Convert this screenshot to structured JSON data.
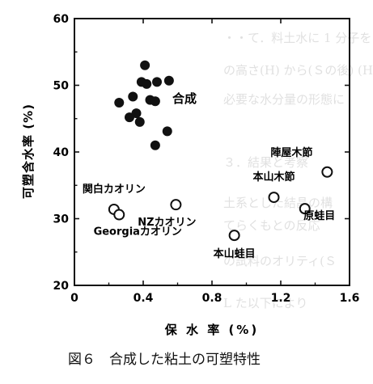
{
  "chart_data": {
    "type": "scatter",
    "xlabel": "保 水 率 (%)",
    "ylabel": "可塑含水率 (%)",
    "xlim": [
      0,
      1.6
    ],
    "ylim": [
      20,
      60
    ],
    "x_ticks": [
      "0",
      "0.4",
      "0.8",
      "1.2",
      "1.6"
    ],
    "y_ticks": [
      "20",
      "30",
      "40",
      "50",
      "60"
    ],
    "grid": false,
    "series": [
      {
        "name": "合成",
        "marker": "filled-circle",
        "points": [
          {
            "x": 0.41,
            "y": 53.0
          },
          {
            "x": 0.39,
            "y": 50.5
          },
          {
            "x": 0.42,
            "y": 50.2
          },
          {
            "x": 0.48,
            "y": 50.5
          },
          {
            "x": 0.55,
            "y": 50.7
          },
          {
            "x": 0.34,
            "y": 48.3
          },
          {
            "x": 0.44,
            "y": 47.8
          },
          {
            "x": 0.47,
            "y": 47.6
          },
          {
            "x": 0.26,
            "y": 47.4
          },
          {
            "x": 0.36,
            "y": 45.8
          },
          {
            "x": 0.32,
            "y": 45.2
          },
          {
            "x": 0.38,
            "y": 44.5
          },
          {
            "x": 0.54,
            "y": 43.1
          },
          {
            "x": 0.47,
            "y": 41.0
          }
        ]
      },
      {
        "name": "",
        "marker": "open-circle",
        "points": [
          {
            "x": 1.47,
            "y": 37.0,
            "label": "陣屋木節"
          },
          {
            "x": 1.16,
            "y": 33.2,
            "label": "本山木節"
          },
          {
            "x": 1.34,
            "y": 31.5,
            "label": "原蛙目"
          },
          {
            "x": 0.93,
            "y": 27.5,
            "label": "本山蛙目"
          },
          {
            "x": 0.59,
            "y": 32.1,
            "label": "NZカオリン"
          },
          {
            "x": 0.23,
            "y": 31.4,
            "label": "関白カオリン"
          },
          {
            "x": 0.26,
            "y": 30.6,
            "label": "Georgiaカオリン"
          }
        ]
      }
    ]
  },
  "caption": "図６　合成した粘土の可塑特性"
}
